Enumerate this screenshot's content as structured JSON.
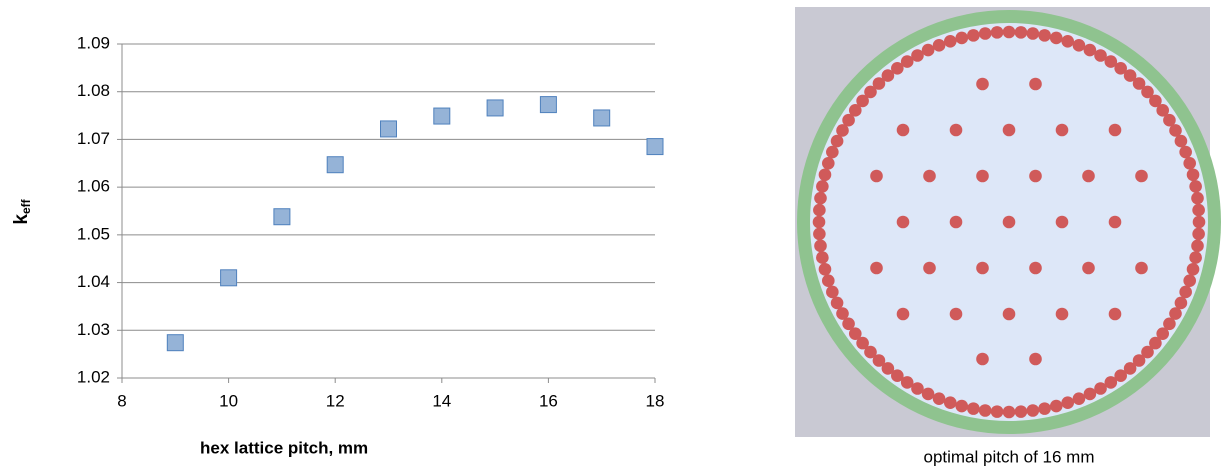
{
  "chart_data": {
    "type": "scatter",
    "x_label": "hex lattice pitch, mm",
    "y_label": "k",
    "y_label_subscript": "eff",
    "x": [
      9,
      10,
      11,
      12,
      13,
      14,
      15,
      16,
      17,
      18
    ],
    "values": [
      1.0274,
      1.041,
      1.0538,
      1.0647,
      1.0722,
      1.0749,
      1.0766,
      1.0773,
      1.0745,
      1.0685
    ],
    "color": "#95b3d7",
    "edge_color": "#4f81bd",
    "xlim": [
      8,
      18
    ],
    "xticks": [
      8,
      10,
      12,
      14,
      16,
      18
    ],
    "ylim": [
      1.02,
      1.09
    ],
    "yticks": [
      1.02,
      1.03,
      1.04,
      1.05,
      1.06,
      1.07,
      1.08,
      1.09
    ],
    "grid": true
  },
  "diagram": {
    "caption": "optimal pitch of 16 mm"
  }
}
